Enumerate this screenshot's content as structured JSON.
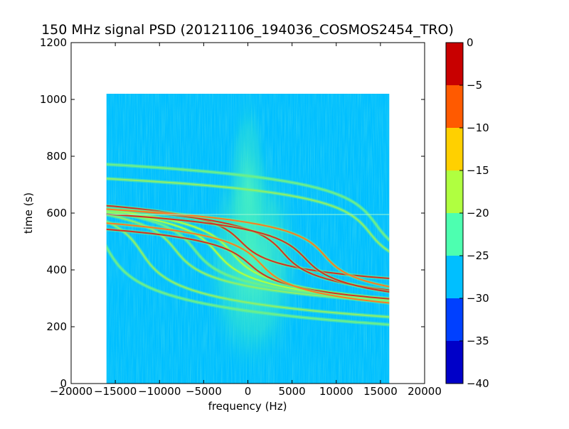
{
  "chart_data": {
    "type": "heatmap",
    "title": "150 MHz signal PSD (20121106_194036_COSMOS2454_TRO)",
    "xlabel": "frequency (Hz)",
    "ylabel": "time (s)",
    "xlim": [
      -20000,
      20000
    ],
    "ylim": [
      0,
      1200
    ],
    "x_ticks": [
      -20000,
      -15000,
      -10000,
      -5000,
      0,
      5000,
      10000,
      15000,
      20000
    ],
    "x_tick_labels": [
      "−20000",
      "−15000",
      "−10000",
      "−5000",
      "0",
      "5000",
      "10000",
      "15000",
      "20000"
    ],
    "y_ticks": [
      0,
      200,
      400,
      600,
      800,
      1000,
      1200
    ],
    "y_tick_labels": [
      "0",
      "200",
      "400",
      "600",
      "800",
      "1000",
      "1200"
    ],
    "data_extent": {
      "x": [
        -16000,
        16000
      ],
      "y": [
        0,
        1020
      ]
    },
    "grid": false,
    "colorbar": {
      "range": [
        -40,
        0
      ],
      "levels": [
        -40,
        -35,
        -30,
        -25,
        -20,
        -15,
        -10,
        -5,
        0
      ],
      "tick_labels": [
        "−40",
        "−35",
        "−30",
        "−25",
        "−20",
        "−15",
        "−10",
        "−5",
        "0"
      ],
      "colors": [
        "#0000c8",
        "#0040ff",
        "#00bfff",
        "#4dffb0",
        "#b0ff40",
        "#ffd000",
        "#ff5a00",
        "#c80000"
      ]
    },
    "background_level_color": "#00bfff",
    "traces": [
      {
        "center_x": -16000,
        "center_y": 480,
        "amplitude": 1300,
        "width": 70,
        "color": "#6cf08a"
      },
      {
        "center_x": -12000,
        "center_y": 460,
        "amplitude": 1300,
        "width": 60,
        "color": "#8ef06a"
      },
      {
        "center_x": -8200,
        "center_y": 470,
        "amplitude": 1300,
        "width": 50,
        "color": "#8ef06a"
      },
      {
        "center_x": -6000,
        "center_y": 470,
        "amplitude": 1300,
        "width": 50,
        "color": "#6cf08a"
      },
      {
        "center_x": -3500,
        "center_y": 460,
        "amplitude": 1400,
        "width": 50,
        "color": "#b0ff40"
      },
      {
        "center_x": -1800,
        "center_y": 460,
        "amplitude": 1400,
        "width": 50,
        "color": "#b0ff40"
      },
      {
        "center_x": -800,
        "center_y": 500,
        "amplitude": 1300,
        "width": 40,
        "color": "#d7301f"
      },
      {
        "center_x": 200,
        "center_y": 420,
        "amplitude": 1500,
        "width": 40,
        "color": "#d7301f"
      },
      {
        "center_x": 1500,
        "center_y": 420,
        "amplitude": 1400,
        "width": 45,
        "color": "#ff7a20"
      },
      {
        "center_x": 4000,
        "center_y": 460,
        "amplitude": 1300,
        "width": 45,
        "color": "#d7301f"
      },
      {
        "center_x": 6500,
        "center_y": 440,
        "amplitude": 1400,
        "width": 45,
        "color": "#d7301f"
      },
      {
        "center_x": 8700,
        "center_y": 450,
        "amplitude": 1300,
        "width": 45,
        "color": "#ff7a20"
      },
      {
        "center_x": 13800,
        "center_y": 530,
        "amplitude": 1300,
        "width": 50,
        "color": "#8ef06a"
      },
      {
        "center_x": 14500,
        "center_y": 560,
        "amplitude": 1300,
        "width": 55,
        "color": "#6cf08a"
      }
    ]
  }
}
